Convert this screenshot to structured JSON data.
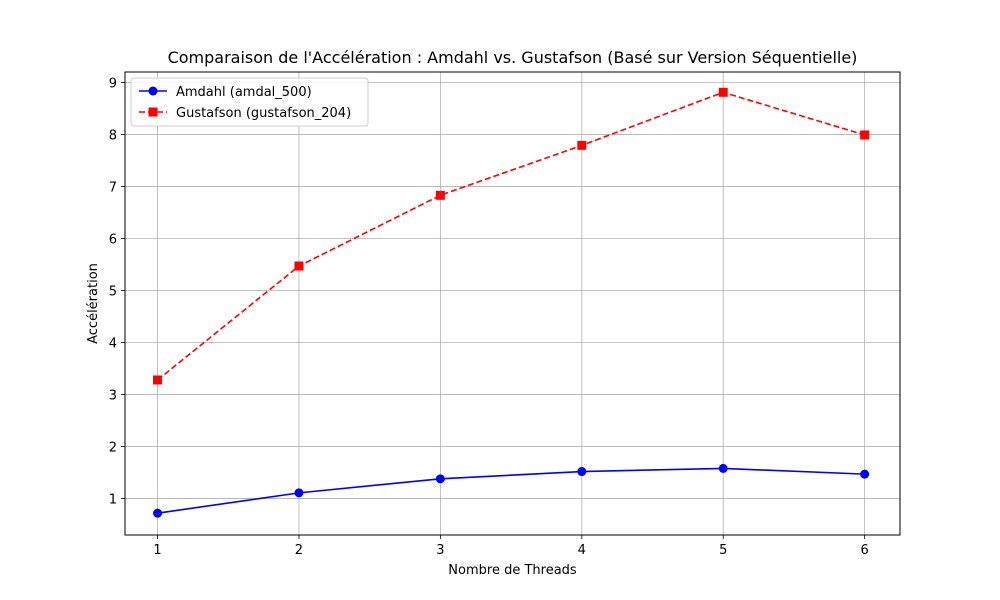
{
  "chart_data": {
    "type": "line",
    "title": "Comparaison de l'Accélération : Amdahl vs. Gustafson (Basé sur Version Séquentielle)",
    "xlabel": "Nombre de Threads",
    "ylabel": "Accélération",
    "x": [
      1,
      2,
      3,
      4,
      5,
      6
    ],
    "xticks": [
      "1",
      "2",
      "3",
      "4",
      "5",
      "6"
    ],
    "yticks": [
      "1",
      "2",
      "3",
      "4",
      "5",
      "6",
      "7",
      "8",
      "9"
    ],
    "xlim": [
      0.77,
      6.25
    ],
    "ylim": [
      0.3,
      9.2
    ],
    "grid": true,
    "legend_position": "top-left",
    "series": [
      {
        "name": "Amdahl (amdal_500)",
        "values": [
          0.72,
          1.11,
          1.38,
          1.52,
          1.58,
          1.47
        ],
        "color": "#0000ff",
        "linestyle": "solid",
        "marker": "circle"
      },
      {
        "name": "Gustafson (gustafson_204)",
        "values": [
          3.28,
          5.47,
          6.83,
          7.79,
          8.81,
          7.99
        ],
        "color": "#ff0000",
        "linestyle": "dashed",
        "marker": "square"
      }
    ]
  }
}
